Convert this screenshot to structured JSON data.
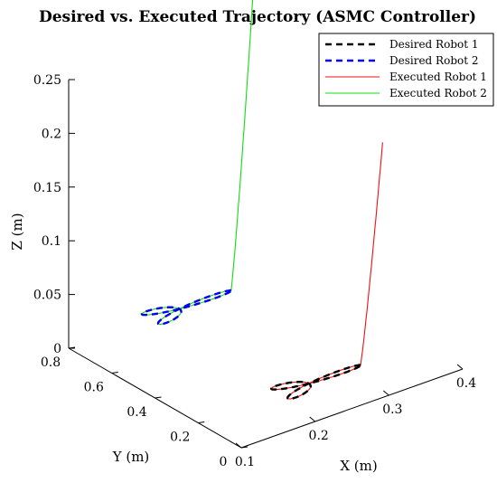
{
  "chart_data": {
    "type": "line",
    "projection": "3d",
    "title": "Desired vs. Executed Trajectory (ASMC Controller)",
    "xlabel": "X (m)",
    "ylabel": "Y (m)",
    "zlabel": "Z (m)",
    "xlim": [
      0.1,
      0.4
    ],
    "ylim": [
      0,
      0.8
    ],
    "zlim": [
      0,
      0.25
    ],
    "x_ticks": [
      "0.1",
      "0.2",
      "0.3",
      "0.4"
    ],
    "y_ticks": [
      "0",
      "0.2",
      "0.4",
      "0.6",
      "0.8"
    ],
    "z_ticks": [
      "0",
      "0.05",
      "0.1",
      "0.15",
      "0.2",
      "0.25"
    ],
    "grid": false,
    "legend_position": "top-right",
    "series": [
      {
        "name": "Desired Robot 1",
        "color": "#000000",
        "style": "dashed",
        "shape": "three-petal-rose",
        "center": [
          0.25,
          0.2,
          0
        ],
        "radius": 0.07
      },
      {
        "name": "Desired Robot 2",
        "color": "#0000ee",
        "style": "dashed",
        "shape": "three-petal-rose",
        "center": [
          0.25,
          0.8,
          0
        ],
        "radius": 0.07
      },
      {
        "name": "Executed Robot 1",
        "color": "#ee1111",
        "style": "solid",
        "shape": "three-petal-rose-with-initial-approach",
        "start": [
          0.35,
          0.2,
          0.2
        ],
        "center": [
          0.25,
          0.2,
          0
        ],
        "radius": 0.07
      },
      {
        "name": "Executed Robot 2",
        "color": "#11dd11",
        "style": "solid",
        "shape": "three-petal-rose-with-initial-approach",
        "start": [
          0.35,
          0.8,
          0.27
        ],
        "center": [
          0.25,
          0.8,
          0
        ],
        "radius": 0.07
      }
    ]
  }
}
